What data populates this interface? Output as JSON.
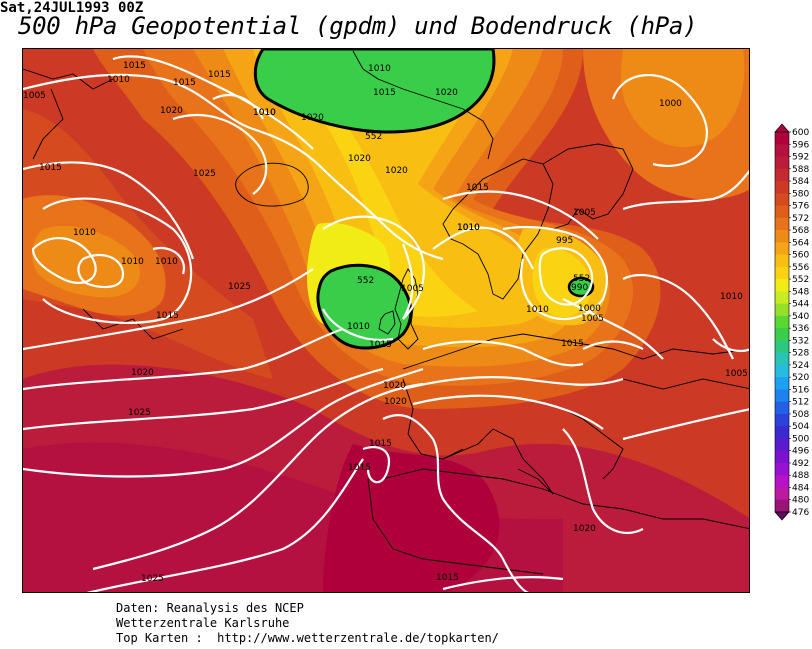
{
  "header": {
    "date": "Sat,24JUL1993 00Z",
    "title": "500 hPa Geopotential (gpdm) und Bodendruck (hPa)"
  },
  "legend": {
    "levels": [
      "600",
      "596",
      "592",
      "588",
      "584",
      "580",
      "576",
      "572",
      "568",
      "564",
      "560",
      "556",
      "552",
      "548",
      "544",
      "540",
      "536",
      "532",
      "528",
      "524",
      "520",
      "516",
      "512",
      "508",
      "504",
      "500",
      "496",
      "492",
      "488",
      "484",
      "480",
      "476"
    ],
    "colors": [
      "#b0003c",
      "#b41040",
      "#bb1c3c",
      "#c42a30",
      "#cc3a26",
      "#d64a20",
      "#df5e1a",
      "#e8731a",
      "#ee8a16",
      "#f4a414",
      "#f8be12",
      "#fad412",
      "#f2ec16",
      "#c8ec22",
      "#96e02c",
      "#5ad832",
      "#3acd4a",
      "#2cc880",
      "#2ac4b4",
      "#26bce0",
      "#1ea0f2",
      "#1d82ee",
      "#2460e6",
      "#2c42dc",
      "#3a2ad0",
      "#5a1ad0",
      "#7a12d0",
      "#9a10d2",
      "#b812c8",
      "#bc1aa0",
      "#9a1478",
      "#600a60"
    ]
  },
  "map": {
    "geopotential_labels": [
      "552",
      "552",
      "552"
    ],
    "pressure_labels": [
      "1005",
      "1010",
      "1015",
      "1015",
      "1020",
      "1010",
      "1015",
      "1010",
      "1020",
      "1020",
      "1015",
      "1010",
      "1020",
      "1020",
      "1000",
      "1015",
      "1025",
      "1010",
      "1010",
      "1010",
      "1015",
      "1010",
      "1005",
      "995",
      "990",
      "1000",
      "1005",
      "1025",
      "1015",
      "1005",
      "1010",
      "1010",
      "1015",
      "1010",
      "1015",
      "1020",
      "1020",
      "1020",
      "1005",
      "1025",
      "1015",
      "1015",
      "1020",
      "1025",
      "1015",
      "1010"
    ]
  },
  "footer": {
    "line1": "Daten: Reanalysis des NCEP",
    "line2": "Wetterzentrale Karlsruhe",
    "line3": "Top Karten :  http://www.wetterzentrale.de/topkarten/"
  }
}
